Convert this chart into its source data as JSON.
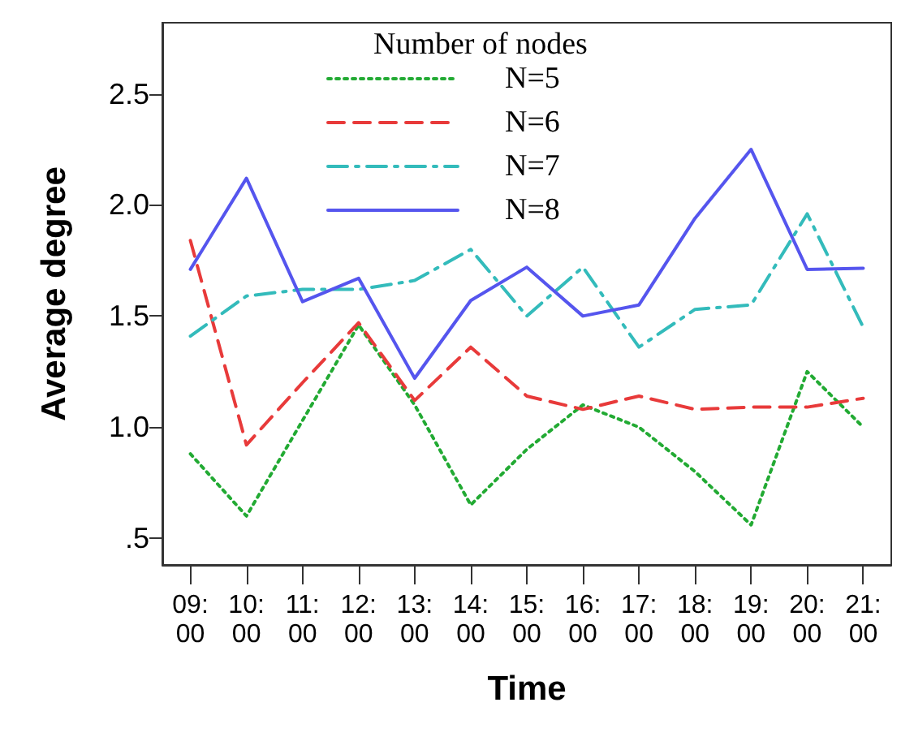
{
  "chart_data": {
    "type": "line",
    "xlabel": "Time",
    "ylabel": "Average degree",
    "legend_title": "Number of nodes",
    "legend": "top",
    "grid": false,
    "marker": "none",
    "categories": [
      "09:00",
      "10:00",
      "11:00",
      "12:00",
      "13:00",
      "14:00",
      "15:00",
      "16:00",
      "17:00",
      "18:00",
      "19:00",
      "20:00",
      "21:00"
    ],
    "ylim": [
      0.38,
      2.82
    ],
    "yticks": [
      {
        "value": 0.5,
        "label": ".5"
      },
      {
        "value": 1,
        "label": "1.0"
      },
      {
        "value": 1.5,
        "label": "1.5"
      },
      {
        "value": 2,
        "label": "2.0"
      },
      {
        "value": 2.5,
        "label": "2.5"
      }
    ],
    "series": [
      {
        "name": "N=5",
        "color": "#22aa33",
        "line_style": "dotted",
        "values": [
          0.88,
          0.6,
          1.03,
          1.46,
          1.1,
          0.65,
          0.9,
          1.1,
          1.0,
          0.8,
          0.56,
          1.25,
          1.0
        ]
      },
      {
        "name": "N=6",
        "color": "#e83a3a",
        "line_style": "dashed",
        "values": [
          1.84,
          0.92,
          1.2,
          1.47,
          1.12,
          1.36,
          1.14,
          1.08,
          1.14,
          1.08,
          1.09,
          1.09,
          1.13
        ]
      },
      {
        "name": "N=7",
        "color": "#33bbbb",
        "line_style": "dashdot",
        "values": [
          1.41,
          1.59,
          1.62,
          1.62,
          1.66,
          1.8,
          1.5,
          1.72,
          1.36,
          1.53,
          1.55,
          1.96,
          1.45
        ]
      },
      {
        "name": "N=8",
        "color": "#5555ee",
        "line_style": "solid",
        "values": [
          1.71,
          2.12,
          1.565,
          1.67,
          1.22,
          1.57,
          1.72,
          1.5,
          1.55,
          1.94,
          2.25,
          1.71,
          1.715
        ]
      }
    ]
  }
}
